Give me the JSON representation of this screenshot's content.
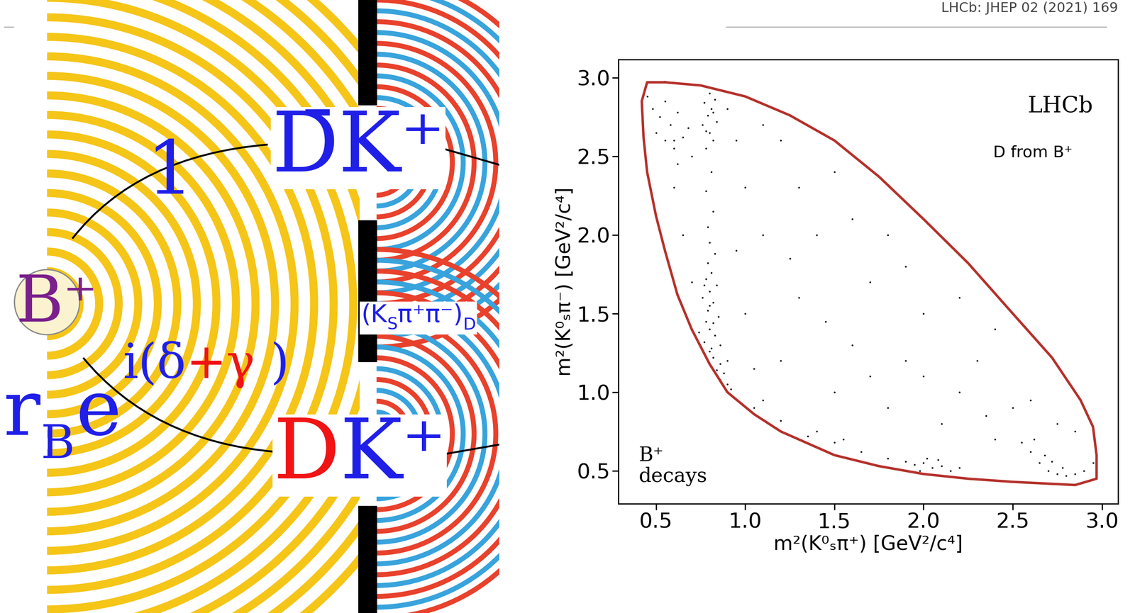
{
  "reference": "LHCb: JHEP 02 (2021) 169",
  "diagram": {
    "source": "B⁺",
    "upper_path": {
      "amplitude": "1",
      "state": "D̄K⁺"
    },
    "lower_path": {
      "amplitude": [
        "r",
        "B",
        "e"
      ],
      "phase": [
        "i(δ",
        "+γ",
        " )"
      ],
      "state": [
        "D",
        "K⁺"
      ]
    },
    "final_state": [
      "(K",
      "S",
      "π⁺π⁻)",
      "D"
    ]
  },
  "chart_data": {
    "type": "scatter",
    "xlabel": "m²(K⁰ₛπ⁺) [GeV²/c⁴]",
    "ylabel": "m²(K⁰ₛπ⁻) [GeV²/c⁴]",
    "xlim": [
      0.29,
      3.09
    ],
    "ylim": [
      0.29,
      3.115
    ],
    "xticks": [
      0.5,
      1.0,
      1.5,
      2.0,
      2.5,
      3.0
    ],
    "yticks": [
      0.5,
      1.0,
      1.5,
      2.0,
      2.5,
      3.0
    ],
    "annotations": [
      "LHCb",
      "D from B⁺",
      "B⁺\ndecays"
    ],
    "color": "#000000",
    "x": [
      0.92,
      0.86,
      0.84,
      0.86,
      0.82,
      0.8,
      0.81,
      0.77,
      0.83,
      0.8,
      0.78,
      0.85,
      0.79,
      0.82,
      0.76,
      0.8,
      0.84,
      0.78,
      0.81,
      0.79,
      0.83,
      0.8,
      0.86,
      0.74,
      0.82,
      0.88,
      0.9,
      0.8,
      0.77,
      0.79,
      0.82,
      0.78,
      0.81,
      0.78,
      0.82,
      0.8,
      0.76,
      0.84,
      0.79,
      0.81,
      0.77,
      0.83,
      0.8,
      0.78,
      0.82,
      0.48,
      0.52,
      0.55,
      0.58,
      0.5,
      0.62,
      0.65,
      0.6,
      0.45,
      0.68,
      0.55,
      0.7,
      0.62,
      1.9,
      1.95,
      2.0,
      2.05,
      2.1,
      2.15,
      2.02,
      1.98,
      2.08,
      2.2,
      2.6,
      2.65,
      2.7,
      2.75,
      2.8,
      2.68,
      2.72,
      2.78,
      2.85,
      2.55,
      2.62,
      2.9,
      1.05,
      1.2,
      1.35,
      1.5,
      1.65,
      1.8,
      1.4,
      1.1,
      1.55,
      1.2,
      1.5,
      1.8,
      2.1,
      2.4,
      1.0,
      1.3,
      1.6,
      1.9,
      2.2,
      2.5,
      1.1,
      1.4,
      1.7,
      2.0,
      2.3,
      2.6,
      1.0,
      1.3,
      1.6,
      1.9,
      0.95,
      1.2,
      1.5,
      0.6,
      0.65,
      0.7,
      0.9,
      1.05,
      2.75,
      2.4,
      2.2,
      1.8,
      1.1,
      0.95,
      1.25,
      1.45,
      2.0,
      2.35,
      1.7,
      0.6,
      0.9,
      2.85,
      2.95
    ],
    "y": [
      1.02,
      1.08,
      1.14,
      1.18,
      1.22,
      1.26,
      1.28,
      1.32,
      1.36,
      1.4,
      1.45,
      1.48,
      1.52,
      1.57,
      1.6,
      1.64,
      1.68,
      1.72,
      1.76,
      1.82,
      1.88,
      1.95,
      1.3,
      1.38,
      1.44,
      1.12,
      1.05,
      1.55,
      1.68,
      2.05,
      2.15,
      2.28,
      2.4,
      2.55,
      2.6,
      2.65,
      2.7,
      2.72,
      2.76,
      2.8,
      2.84,
      2.86,
      2.9,
      2.66,
      2.78,
      2.8,
      2.75,
      2.85,
      2.7,
      2.65,
      2.78,
      2.62,
      2.55,
      2.88,
      2.68,
      2.6,
      2.5,
      2.45,
      0.56,
      0.54,
      0.55,
      0.52,
      0.53,
      0.5,
      0.58,
      0.5,
      0.57,
      0.52,
      0.62,
      0.55,
      0.5,
      0.48,
      0.47,
      0.6,
      0.56,
      0.52,
      0.48,
      0.68,
      0.7,
      0.5,
      0.9,
      0.82,
      0.72,
      0.68,
      0.62,
      0.58,
      0.75,
      0.95,
      0.7,
      1.2,
      1.0,
      0.9,
      0.8,
      0.7,
      1.5,
      1.6,
      1.3,
      1.2,
      1.0,
      0.9,
      2.0,
      2.0,
      1.7,
      1.5,
      1.2,
      0.95,
      2.3,
      2.3,
      2.1,
      1.8,
      2.6,
      2.6,
      2.4,
      2.3,
      2.0,
      1.7,
      1.2,
      1.15,
      0.8,
      1.4,
      1.6,
      2.0,
      2.7,
      1.9,
      1.85,
      1.45,
      1.1,
      0.85,
      1.1,
      2.6,
      2.8,
      0.75,
      0.55
    ],
    "boundary": {
      "color": "#b5312b",
      "x": [
        0.55,
        0.75,
        1.0,
        1.25,
        1.5,
        1.75,
        2.0,
        2.25,
        2.5,
        2.72,
        2.88,
        2.95,
        2.97,
        2.97,
        2.85,
        2.5,
        2.25,
        2.0,
        1.75,
        1.5,
        1.2,
        1.05,
        0.9,
        0.8,
        0.7,
        0.62,
        0.55,
        0.5,
        0.45,
        0.43,
        0.42,
        0.45,
        0.55
      ],
      "y": [
        2.97,
        2.95,
        2.88,
        2.76,
        2.6,
        2.37,
        2.1,
        1.82,
        1.5,
        1.22,
        0.95,
        0.78,
        0.6,
        0.45,
        0.41,
        0.43,
        0.45,
        0.48,
        0.53,
        0.6,
        0.75,
        0.86,
        1.0,
        1.18,
        1.4,
        1.62,
        1.9,
        2.12,
        2.4,
        2.62,
        2.85,
        2.97,
        2.97
      ]
    }
  }
}
